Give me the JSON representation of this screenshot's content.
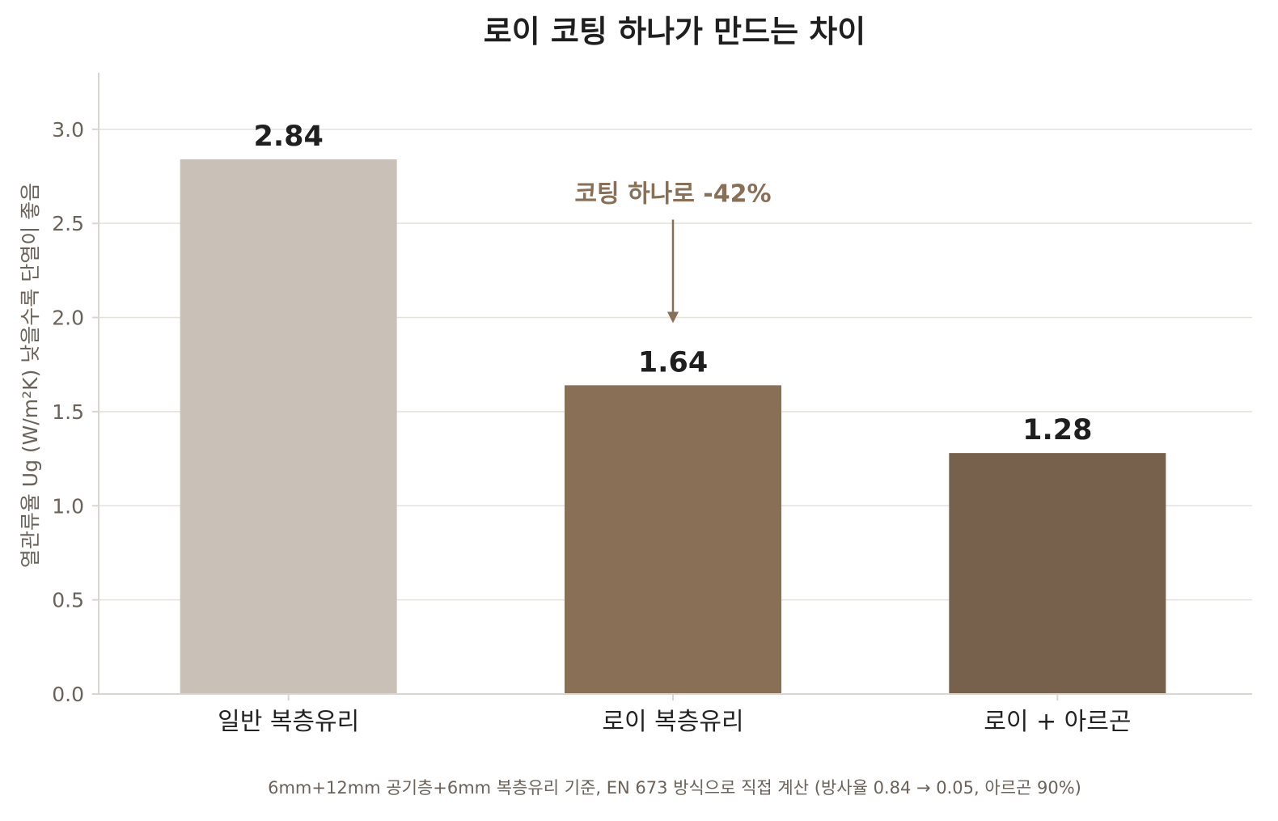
{
  "chart_data": {
    "type": "bar",
    "title": "로이 코팅 하나가 만드는 차이",
    "xlabel": "",
    "ylabel": "열관류율 Ug (W/m²K)  낮을수록 단열이 좋음",
    "categories": [
      "일반 복층유리",
      "로이 복층유리",
      "로이 + 아르곤"
    ],
    "values": [
      2.84,
      1.64,
      1.28
    ],
    "value_labels": [
      "2.84",
      "1.64",
      "1.28"
    ],
    "bar_colors": [
      "#c9c1b7",
      "#8a6f57",
      "#77614c"
    ],
    "ylim": [
      0,
      3.3
    ],
    "yticks": [
      0.0,
      0.5,
      1.0,
      1.5,
      2.0,
      2.5,
      3.0
    ],
    "ytick_labels": [
      "0.0",
      "0.5",
      "1.0",
      "1.5",
      "2.0",
      "2.5",
      "3.0"
    ],
    "grid": true,
    "annotation": {
      "text": "코팅 하나로 -42%",
      "category_index": 1,
      "arrow_from_value": 2.52,
      "arrow_to_value": 1.97,
      "color": "#8a6f57"
    },
    "footnote": "6mm+12mm 공기층+6mm 복층유리 기준, EN 673 방식으로 직접 계산 (방사율 0.84 → 0.05, 아르곤 90%)"
  }
}
